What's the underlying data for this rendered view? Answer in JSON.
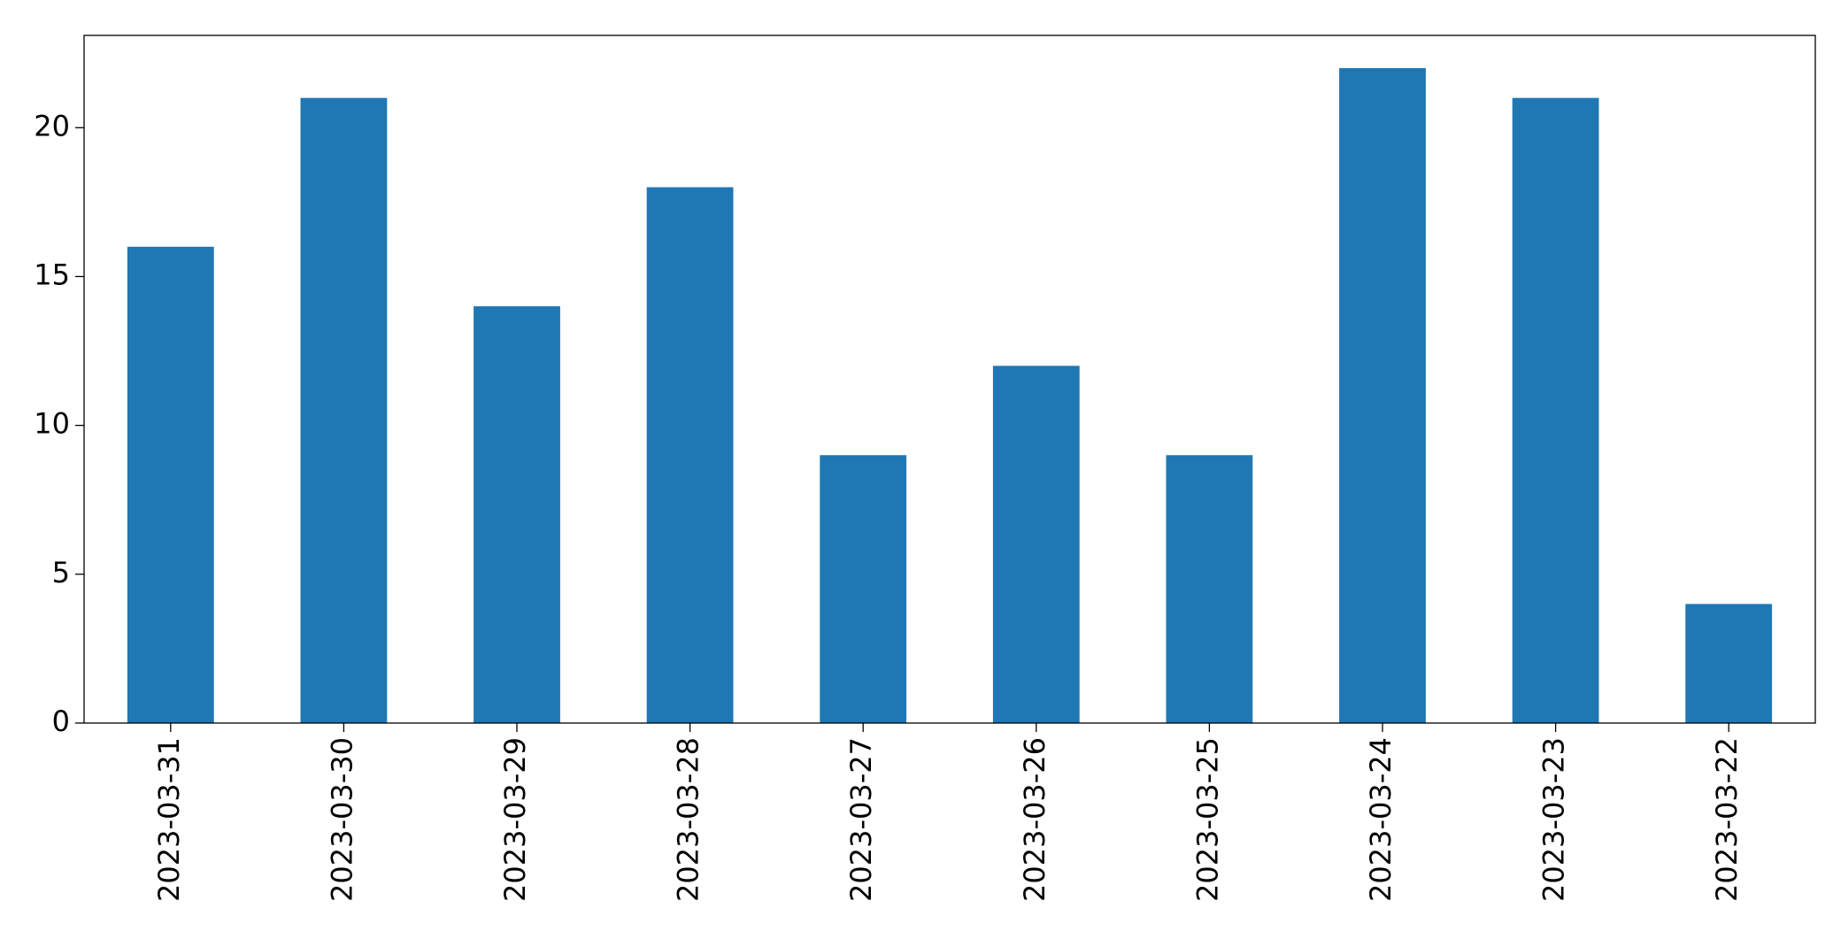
{
  "chart_data": {
    "type": "bar",
    "categories": [
      "2023-03-31",
      "2023-03-30",
      "2023-03-29",
      "2023-03-28",
      "2023-03-27",
      "2023-03-26",
      "2023-03-25",
      "2023-03-24",
      "2023-03-23",
      "2023-03-22"
    ],
    "values": [
      16,
      21,
      14,
      18,
      9,
      12,
      9,
      22,
      21,
      4
    ],
    "color": "#1f77b4",
    "ylim": [
      0,
      23.1
    ],
    "yticks": [
      0,
      5,
      10,
      15,
      20
    ],
    "grid": false
  }
}
